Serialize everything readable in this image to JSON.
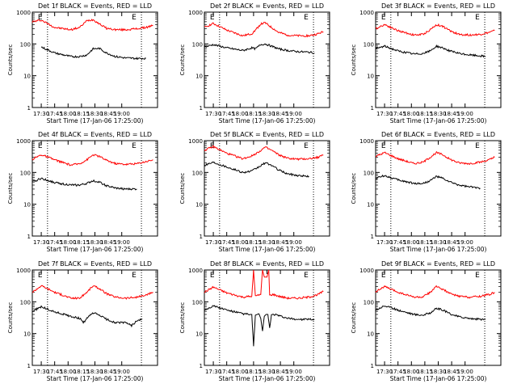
{
  "chart_data": [
    {
      "type": "line",
      "title": "Det 1f BLACK = Events, RED = LLD",
      "xlabel": "Start Time (17-Jan-06 17:25:00)",
      "ylabel": "Counts/sec",
      "yscale": "log",
      "ylim": [
        1,
        1000
      ],
      "xticks": [
        "17:30",
        "17:45",
        "18:00",
        "18:15",
        "18:30",
        "18:45",
        "19:00"
      ],
      "yticks": [
        "1",
        "10",
        "100",
        "1000"
      ],
      "markers": [
        "E",
        "E"
      ],
      "series": [
        {
          "name": "LLD",
          "color": "#ff0000",
          "x": [
            -5,
            5,
            20,
            38,
            48,
            56,
            63,
            70,
            78,
            88,
            100,
            112,
            122,
            130
          ],
          "values": [
            500,
            560,
            330,
            280,
            330,
            540,
            580,
            430,
            310,
            280,
            280,
            300,
            330,
            380
          ]
        },
        {
          "name": "Events",
          "color": "#000000",
          "x": [
            5,
            20,
            38,
            48,
            56,
            63,
            70,
            78,
            88,
            100,
            112,
            122
          ],
          "values": [
            80,
            52,
            40,
            40,
            45,
            70,
            72,
            52,
            40,
            36,
            35,
            35
          ]
        }
      ]
    },
    {
      "type": "line",
      "title": "Det 2f BLACK = Events, RED = LLD",
      "xlabel": "Start Time (17-Jan-06 17:25:00)",
      "ylabel": "Counts/sec",
      "yscale": "log",
      "ylim": [
        1,
        1000
      ],
      "xticks": [
        "17:30",
        "17:45",
        "18:00",
        "18:15",
        "18:30",
        "18:45",
        "19:00"
      ],
      "yticks": [
        "1",
        "10",
        "100",
        "1000"
      ],
      "markers": [
        "E",
        "E"
      ],
      "series": [
        {
          "name": "LLD",
          "color": "#ff0000",
          "x": [
            -5,
            5,
            20,
            38,
            48,
            52,
            58,
            63,
            70,
            78,
            88,
            100,
            112,
            120,
            128
          ],
          "values": [
            330,
            440,
            270,
            180,
            210,
            270,
            420,
            460,
            330,
            230,
            190,
            180,
            180,
            200,
            240
          ]
        },
        {
          "name": "Events",
          "color": "#000000",
          "x": [
            -5,
            5,
            20,
            38,
            48,
            52,
            58,
            63,
            70,
            78,
            88,
            100,
            112,
            118
          ],
          "values": [
            80,
            95,
            75,
            62,
            75,
            70,
            95,
            100,
            85,
            70,
            62,
            57,
            55,
            52
          ]
        }
      ]
    },
    {
      "type": "line",
      "title": "Det 3f BLACK = Events, RED = LLD",
      "xlabel": "Start Time (17-Jan-06 17:25:00)",
      "ylabel": "Counts/sec",
      "yscale": "log",
      "ylim": [
        1,
        1000
      ],
      "xticks": [
        "17:30",
        "17:45",
        "18:00",
        "18:15",
        "18:30",
        "18:45",
        "19:00"
      ],
      "yticks": [
        "1",
        "10",
        "100",
        "1000"
      ],
      "markers": [
        "E",
        "E"
      ],
      "series": [
        {
          "name": "LLD",
          "color": "#ff0000",
          "x": [
            -5,
            5,
            20,
            38,
            48,
            56,
            63,
            70,
            78,
            88,
            100,
            112,
            122,
            128
          ],
          "values": [
            300,
            410,
            260,
            190,
            200,
            280,
            400,
            360,
            260,
            200,
            190,
            200,
            230,
            260
          ]
        },
        {
          "name": "Events",
          "color": "#000000",
          "x": [
            -5,
            5,
            20,
            38,
            48,
            56,
            63,
            70,
            78,
            88,
            100,
            112,
            118
          ],
          "values": [
            70,
            85,
            60,
            48,
            50,
            60,
            85,
            75,
            60,
            50,
            45,
            42,
            40
          ]
        }
      ]
    },
    {
      "type": "line",
      "title": "Det 4f BLACK = Events, RED = LLD",
      "xlabel": "Start Time (17-Jan-06 17:25:00)",
      "ylabel": "Counts/sec",
      "yscale": "log",
      "ylim": [
        1,
        1000
      ],
      "xticks": [
        "17:30",
        "17:45",
        "18:00",
        "18:15",
        "18:30",
        "18:45",
        "19:00"
      ],
      "yticks": [
        "1",
        "10",
        "100",
        "1000"
      ],
      "markers": [
        "E",
        "E"
      ],
      "series": [
        {
          "name": "LLD",
          "color": "#ff0000",
          "x": [
            -5,
            5,
            20,
            38,
            48,
            56,
            63,
            70,
            78,
            88,
            100,
            112,
            122,
            130
          ],
          "values": [
            260,
            360,
            250,
            170,
            190,
            250,
            360,
            320,
            240,
            190,
            180,
            190,
            220,
            250
          ]
        },
        {
          "name": "Events",
          "color": "#000000",
          "x": [
            -5,
            5,
            20,
            38,
            48,
            56,
            63,
            70,
            78,
            88,
            100,
            112
          ],
          "values": [
            50,
            65,
            48,
            40,
            40,
            45,
            55,
            50,
            38,
            32,
            30,
            30
          ]
        }
      ]
    },
    {
      "type": "line",
      "title": "Det 5f BLACK = Events, RED = LLD",
      "xlabel": "Start Time (17-Jan-06 17:25:00)",
      "ylabel": "Counts/sec",
      "yscale": "log",
      "ylim": [
        1,
        1000
      ],
      "xticks": [
        "17:30",
        "17:45",
        "18:00",
        "18:15",
        "18:30",
        "18:45",
        "19:00"
      ],
      "yticks": [
        "1",
        "10",
        "100",
        "1000"
      ],
      "markers": [
        "E",
        "E"
      ],
      "series": [
        {
          "name": "LLD",
          "color": "#ff0000",
          "x": [
            -5,
            5,
            20,
            38,
            48,
            56,
            63,
            70,
            78,
            88,
            100,
            112,
            122,
            128
          ],
          "values": [
            500,
            650,
            400,
            270,
            330,
            450,
            620,
            500,
            360,
            280,
            260,
            270,
            300,
            350
          ]
        },
        {
          "name": "Events",
          "color": "#000000",
          "x": [
            -5,
            5,
            20,
            38,
            48,
            56,
            63,
            70,
            78,
            88,
            100,
            112
          ],
          "values": [
            170,
            210,
            150,
            100,
            110,
            150,
            200,
            170,
            120,
            90,
            80,
            75
          ]
        }
      ]
    },
    {
      "type": "line",
      "title": "Det 6f BLACK = Events, RED = LLD",
      "xlabel": "Start Time (17-Jan-06 17:25:00)",
      "ylabel": "Counts/sec",
      "yscale": "log",
      "ylim": [
        1,
        1000
      ],
      "xticks": [
        "17:30",
        "17:45",
        "18:00",
        "18:15",
        "18:30",
        "18:45",
        "19:00"
      ],
      "yticks": [
        "1",
        "10",
        "100",
        "1000"
      ],
      "markers": [
        "E",
        "E"
      ],
      "series": [
        {
          "name": "LLD",
          "color": "#ff0000",
          "x": [
            -5,
            5,
            20,
            38,
            48,
            56,
            63,
            70,
            78,
            88,
            100,
            112,
            122,
            128
          ],
          "values": [
            320,
            420,
            270,
            190,
            210,
            300,
            420,
            360,
            260,
            200,
            190,
            210,
            250,
            300
          ]
        },
        {
          "name": "Events",
          "color": "#000000",
          "x": [
            -5,
            5,
            20,
            38,
            48,
            56,
            63,
            70,
            78,
            88,
            100,
            112
          ],
          "values": [
            65,
            80,
            58,
            45,
            45,
            55,
            75,
            65,
            50,
            40,
            35,
            32
          ]
        }
      ]
    },
    {
      "type": "line",
      "title": "Det 7f BLACK = Events, RED = LLD",
      "xlabel": "Start Time (17-Jan-06 17:25:00)",
      "ylabel": "Counts/sec",
      "yscale": "log",
      "ylim": [
        1,
        1000
      ],
      "xticks": [
        "17:30",
        "17:45",
        "18:00",
        "18:15",
        "18:30",
        "18:45",
        "19:00"
      ],
      "yticks": [
        "1",
        "10",
        "100",
        "1000"
      ],
      "markers": [
        "E",
        "E"
      ],
      "series": [
        {
          "name": "LLD",
          "color": "#ff0000",
          "x": [
            -5,
            5,
            20,
            38,
            48,
            56,
            63,
            70,
            78,
            88,
            100,
            112,
            122,
            130
          ],
          "values": [
            200,
            320,
            200,
            130,
            130,
            200,
            320,
            260,
            180,
            140,
            130,
            140,
            160,
            200
          ]
        },
        {
          "name": "Events",
          "color": "#000000",
          "x": [
            -5,
            5,
            20,
            38,
            48,
            52,
            56,
            63,
            70,
            78,
            88,
            100,
            106,
            112,
            118
          ],
          "values": [
            50,
            70,
            48,
            35,
            30,
            22,
            30,
            45,
            38,
            28,
            22,
            22,
            18,
            25,
            28
          ]
        }
      ]
    },
    {
      "type": "line",
      "title": "Det 8f BLACK = Events, RED = LLD",
      "xlabel": "Start Time (17-Jan-06 17:25:00)",
      "ylabel": "Counts/sec",
      "yscale": "log",
      "ylim": [
        1,
        1000
      ],
      "xticks": [
        "17:30",
        "17:45",
        "18:00",
        "18:15",
        "18:30",
        "18:45",
        "19:00"
      ],
      "yticks": [
        "1",
        "10",
        "100",
        "1000"
      ],
      "markers": [
        "E",
        "E"
      ],
      "series": [
        {
          "name": "LLD",
          "color": "#ff0000",
          "x": [
            -5,
            5,
            20,
            38,
            48,
            50,
            52,
            58,
            60,
            62,
            65,
            67,
            68,
            72,
            78,
            88,
            100,
            112,
            122,
            128
          ],
          "values": [
            200,
            290,
            190,
            140,
            150,
            1000,
            150,
            170,
            1000,
            600,
            600,
            1000,
            160,
            170,
            150,
            130,
            130,
            140,
            170,
            210
          ]
        },
        {
          "name": "Events",
          "color": "#000000",
          "x": [
            -5,
            5,
            20,
            38,
            46,
            48,
            50,
            52,
            54,
            56,
            58,
            60,
            62,
            64,
            66,
            68,
            70,
            74,
            80,
            88,
            100,
            112,
            118
          ],
          "values": [
            55,
            75,
            55,
            42,
            40,
            40,
            4,
            38,
            40,
            42,
            30,
            12,
            35,
            40,
            40,
            15,
            38,
            40,
            35,
            30,
            28,
            28,
            27
          ]
        }
      ]
    },
    {
      "type": "line",
      "title": "Det 9f BLACK = Events, RED = LLD",
      "xlabel": "Start Time (17-Jan-06 17:25:00)",
      "ylabel": "Counts/sec",
      "yscale": "log",
      "ylim": [
        1,
        1000
      ],
      "xticks": [
        "17:30",
        "17:45",
        "18:00",
        "18:15",
        "18:30",
        "18:45",
        "19:00"
      ],
      "yticks": [
        "1",
        "10",
        "100",
        "1000"
      ],
      "markers": [
        "E",
        "E"
      ],
      "series": [
        {
          "name": "LLD",
          "color": "#ff0000",
          "x": [
            -5,
            5,
            20,
            38,
            48,
            56,
            63,
            70,
            78,
            88,
            100,
            112,
            122,
            128
          ],
          "values": [
            210,
            300,
            200,
            140,
            140,
            200,
            300,
            250,
            180,
            150,
            140,
            150,
            170,
            200
          ]
        },
        {
          "name": "Events",
          "color": "#000000",
          "x": [
            -5,
            5,
            20,
            38,
            48,
            56,
            63,
            70,
            78,
            88,
            100,
            112,
            118
          ],
          "values": [
            55,
            75,
            55,
            40,
            38,
            45,
            62,
            55,
            42,
            34,
            30,
            28,
            28
          ]
        }
      ]
    }
  ]
}
